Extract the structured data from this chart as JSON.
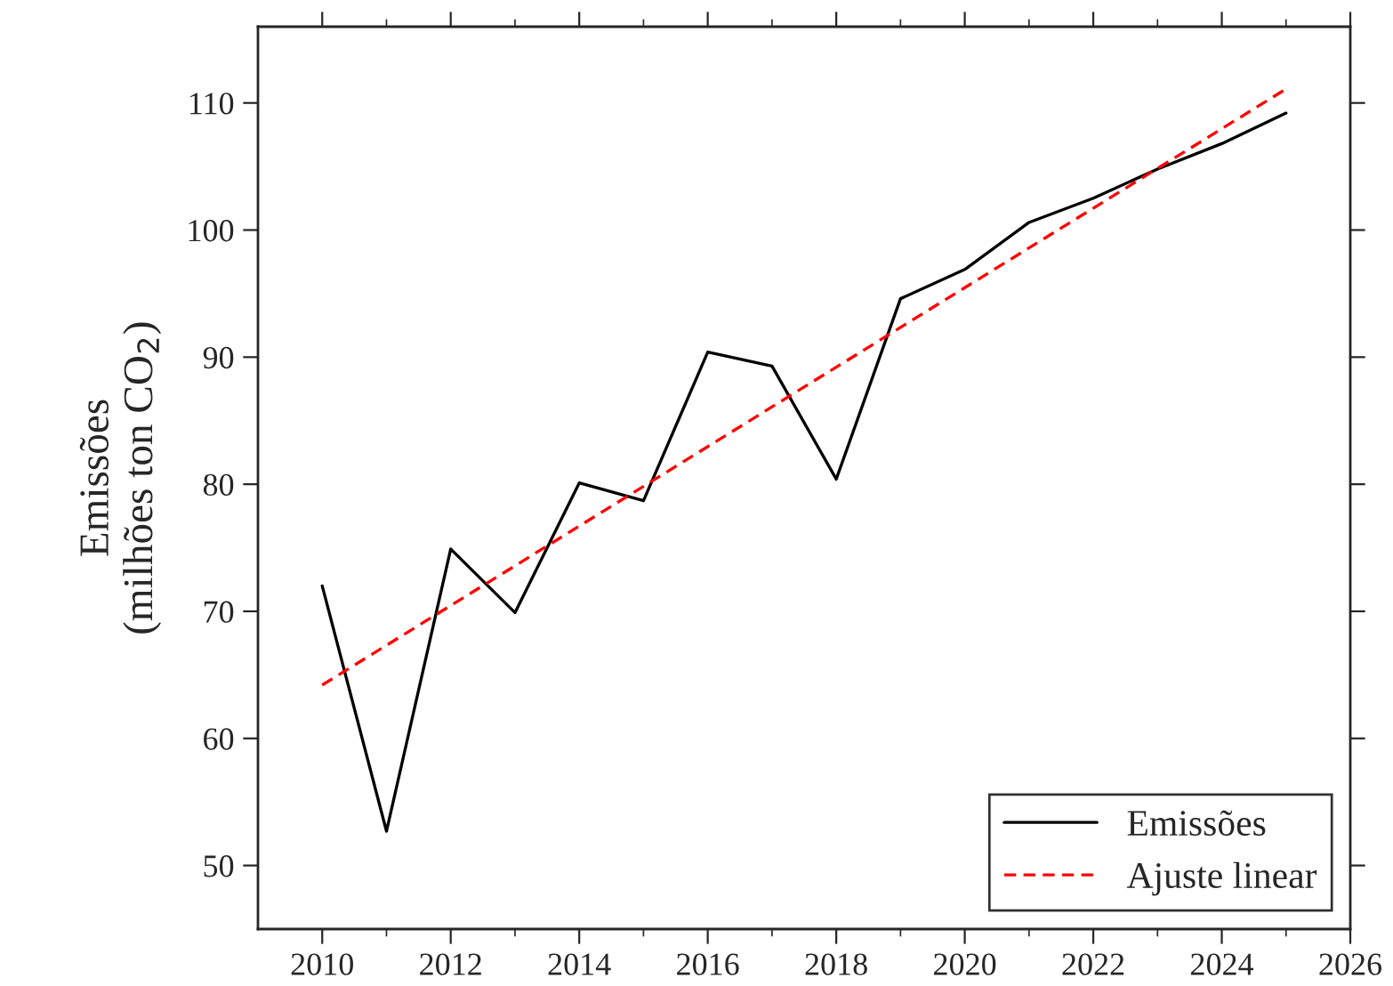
{
  "chart_data": {
    "type": "line",
    "ylabel": "Emissões\n(milhões ton CO$_{2}$)",
    "x": [
      2010,
      2011,
      2012,
      2013,
      2014,
      2015,
      2016,
      2017,
      2018,
      2019,
      2020,
      2021,
      2022,
      2023,
      2024,
      2025
    ],
    "series": [
      {
        "name": "Emissões",
        "color": "#000000",
        "line_style": "solid",
        "values": [
          72.0,
          52.7,
          74.9,
          69.9,
          80.1,
          78.7,
          90.4,
          89.3,
          80.4,
          94.6,
          96.9,
          100.6,
          102.5,
          104.8,
          106.8,
          109.2
        ]
      },
      {
        "name": "Ajuste linear",
        "type": "line",
        "color": "#ff0000",
        "line_style": "dashed",
        "x": [
          2010,
          2025
        ],
        "values": [
          64.2,
          111.1
        ]
      }
    ],
    "xlim": [
      2009,
      2026
    ],
    "xticks": [
      2010,
      2012,
      2014,
      2016,
      2018,
      2020,
      2022,
      2024,
      2026
    ],
    "ylim": [
      45,
      116
    ],
    "yticks": [
      50,
      60,
      70,
      80,
      90,
      100,
      110
    ],
    "grid": false,
    "legend": "bottom right",
    "marker": "none"
  }
}
